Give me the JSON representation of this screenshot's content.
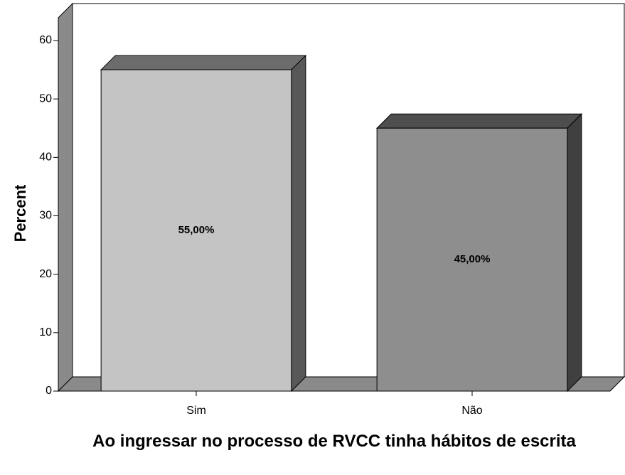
{
  "chart_data": {
    "type": "bar",
    "categories": [
      "Sim",
      "Não"
    ],
    "values": [
      55,
      45
    ],
    "value_labels": [
      "55,00%",
      "45,00%"
    ],
    "colors": [
      "#c4c4c4",
      "#8e8e8e"
    ],
    "ylim": [
      0,
      66
    ],
    "yticks": [
      0,
      10,
      20,
      30,
      40,
      50,
      60
    ],
    "y_label": "Percent",
    "x_label": "Ao ingressar no processo de RVCC tinha hábitos de escrita"
  }
}
